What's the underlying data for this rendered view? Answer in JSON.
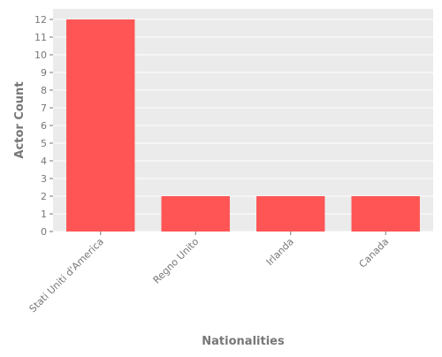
{
  "chart_data": {
    "type": "bar",
    "title": "",
    "xlabel": "Nationalities",
    "ylabel": "Actor Count",
    "categories": [
      "Stati Uniti d'America",
      "Regno Unito",
      "Irlanda",
      "Canada"
    ],
    "values": [
      12,
      2,
      2,
      2
    ],
    "ylim": [
      0,
      12.6
    ],
    "yticks": [
      0,
      1,
      2,
      3,
      4,
      5,
      6,
      7,
      8,
      9,
      10,
      11,
      12
    ],
    "grid": true,
    "legend": "none",
    "colors": {
      "bar": "#ff5555",
      "plot_background": "#ebebeb",
      "grid": "#ffffff",
      "text": "#777777"
    }
  }
}
